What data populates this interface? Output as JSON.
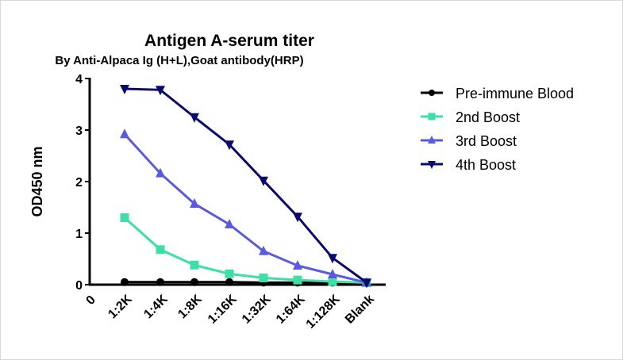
{
  "chart_data": {
    "type": "line",
    "title": "Antigen A-serum titer",
    "subtitle": "By Anti-Alpaca Ig (H+L),Goat antibody(HRP)",
    "xlabel": "",
    "ylabel": "OD450 nm",
    "ylim": [
      0,
      4
    ],
    "yticks": [
      "0",
      "1",
      "2",
      "3",
      "4"
    ],
    "x_origin_label": "0",
    "categories": [
      "1:2K",
      "1:4K",
      "1:8K",
      "1:16K",
      "1:32K",
      "1:64K",
      "1:128K",
      "Blank"
    ],
    "grid": false,
    "legend_position": "right",
    "series": [
      {
        "name": "Pre-immune Blood",
        "marker": "circle",
        "color": "#000000",
        "values": [
          0.05,
          0.05,
          0.05,
          0.05,
          0.04,
          0.04,
          0.04,
          0.04
        ]
      },
      {
        "name": "2nd Boost",
        "marker": "square",
        "color": "#3ddfa6",
        "values": [
          1.3,
          0.68,
          0.38,
          0.21,
          0.13,
          0.09,
          0.06,
          0.04
        ]
      },
      {
        "name": "3rd Boost",
        "marker": "triangle-up",
        "color": "#5a5ae0",
        "values": [
          2.92,
          2.16,
          1.57,
          1.17,
          0.65,
          0.37,
          0.2,
          0.04
        ]
      },
      {
        "name": "4th Boost",
        "marker": "triangle-down",
        "color": "#0a0a6e",
        "values": [
          3.8,
          3.78,
          3.25,
          2.72,
          2.02,
          1.32,
          0.52,
          0.04
        ]
      }
    ]
  }
}
